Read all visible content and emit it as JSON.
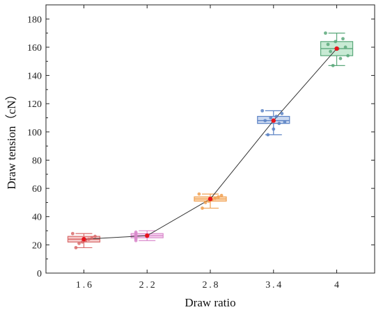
{
  "chart_data": {
    "type": "box",
    "xlabel": "Draw ratio",
    "ylabel": "Draw tension（cN）",
    "ylim": [
      0,
      190
    ],
    "yticks": [
      0,
      20,
      40,
      60,
      80,
      100,
      120,
      140,
      160,
      180
    ],
    "grid": false,
    "legend": "none",
    "categories": [
      "1.6",
      "2.2",
      "2.8",
      "3.4",
      "4"
    ],
    "boxes": [
      {
        "category": "1.6",
        "color": "#d96b6b",
        "fill": "#f2b8b8",
        "whisker_low": 18,
        "q1": 22,
        "median": 24,
        "q3": 26,
        "whisker_high": 28,
        "mean": 24,
        "points": [
          28,
          26,
          25,
          24,
          23,
          22,
          21,
          18
        ]
      },
      {
        "category": "2.2",
        "color": "#d98acb",
        "fill": "#f4c9ec",
        "whisker_low": 23,
        "q1": 25,
        "median": 26.5,
        "q3": 28,
        "whisker_high": 30,
        "mean": 26.5,
        "points": [
          29,
          28,
          27,
          26,
          25,
          24,
          23
        ]
      },
      {
        "category": "2.8",
        "color": "#f0a050",
        "fill": "#fbd3a8",
        "whisker_low": 46,
        "q1": 51,
        "median": 52.5,
        "q3": 54,
        "whisker_high": 56,
        "mean": 52.5,
        "points": [
          56,
          55,
          54,
          53,
          52,
          51,
          50,
          46
        ]
      },
      {
        "category": "3.4",
        "color": "#5b82c4",
        "fill": "#b9cceb",
        "whisker_low": 98,
        "q1": 106,
        "median": 108,
        "q3": 111,
        "whisker_high": 115,
        "mean": 108,
        "points": [
          115,
          113,
          111,
          110,
          108,
          107,
          106,
          102,
          98
        ]
      },
      {
        "category": "4",
        "color": "#5aa87a",
        "fill": "#b6e3c6",
        "whisker_low": 147,
        "q1": 154,
        "median": 159,
        "q3": 164,
        "whisker_high": 170,
        "mean": 159,
        "points": [
          170,
          166,
          164,
          162,
          160,
          159,
          157,
          154,
          152,
          147
        ]
      }
    ],
    "mean_line": {
      "color": "#333333",
      "values": [
        24,
        26.5,
        52.5,
        108,
        159
      ]
    },
    "mean_marker_color": "#e8141c"
  }
}
